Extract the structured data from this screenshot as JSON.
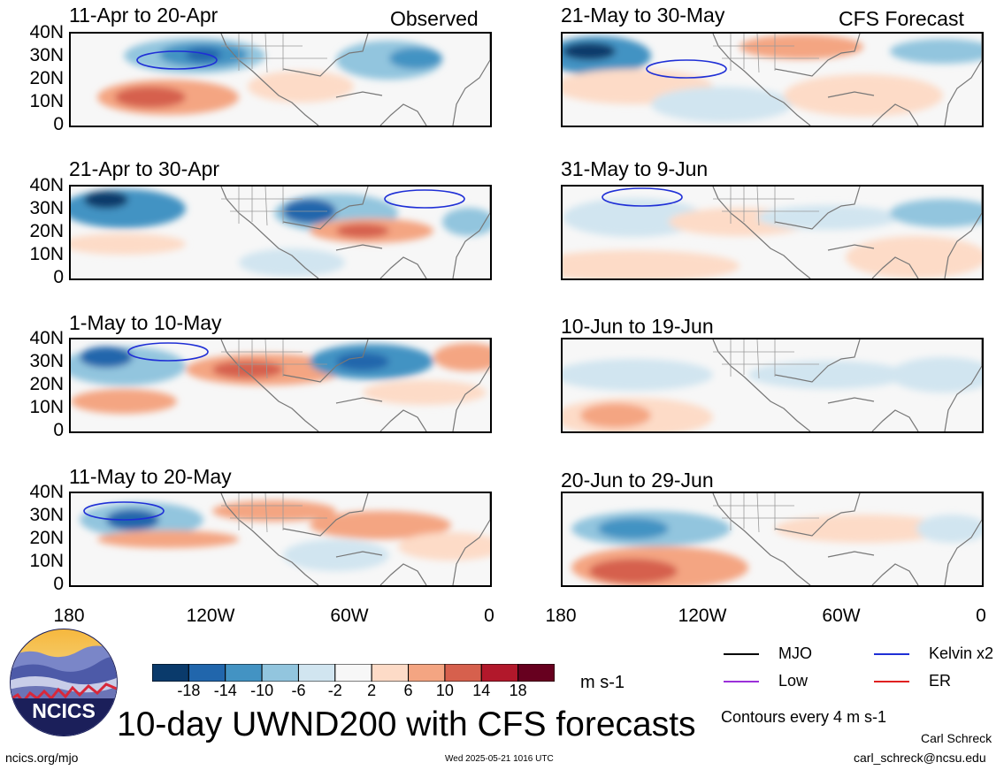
{
  "chart_data": {
    "type": "heatmap",
    "title": "10-day UWND200 with CFS forecasts",
    "units": "m s-1",
    "contour_note": "Contours every 4 m s-1",
    "labels": {
      "observed": "Observed",
      "forecast": "CFS Forecast"
    },
    "x_ticks": [
      "180",
      "120W",
      "60W",
      "0"
    ],
    "y_ticks": [
      "40N",
      "30N",
      "20N",
      "10N",
      "0"
    ],
    "colorbar": {
      "ticks": [
        "-18",
        "-14",
        "-10",
        "-6",
        "-2",
        "2",
        "6",
        "10",
        "14",
        "18"
      ],
      "colors": [
        "#0a3a6b",
        "#2166ac",
        "#4393c3",
        "#92c5de",
        "#d1e5f0",
        "#f7f7f7",
        "#fddbc7",
        "#f4a582",
        "#d6604d",
        "#b2182b",
        "#67001f"
      ]
    },
    "legend": [
      {
        "label": "MJO",
        "color": "#000000"
      },
      {
        "label": "Kelvin x2",
        "color": "#1f2fd6"
      },
      {
        "label": "Low",
        "color": "#9b30d9"
      },
      {
        "label": "ER",
        "color": "#e02020"
      }
    ],
    "panels": [
      {
        "title": "11-Apr to 20-Apr",
        "type": "observed"
      },
      {
        "title": "21-Apr to 30-Apr",
        "type": "observed"
      },
      {
        "title": "1-May to 10-May",
        "type": "observed"
      },
      {
        "title": "11-May to 20-May",
        "type": "observed"
      },
      {
        "title": "21-May to 30-May",
        "type": "forecast"
      },
      {
        "title": "31-May to 9-Jun",
        "type": "forecast"
      },
      {
        "title": "10-Jun to 19-Jun",
        "type": "forecast"
      },
      {
        "title": "20-Jun to 29-Jun",
        "type": "forecast"
      }
    ]
  },
  "logo": {
    "text": "NCICS"
  },
  "footer": {
    "url": "ncics.org/mjo",
    "timestamp": "Wed 2025-05-21 1016 UTC",
    "author": "Carl Schreck",
    "email": "carl_schreck@ncsu.edu"
  }
}
